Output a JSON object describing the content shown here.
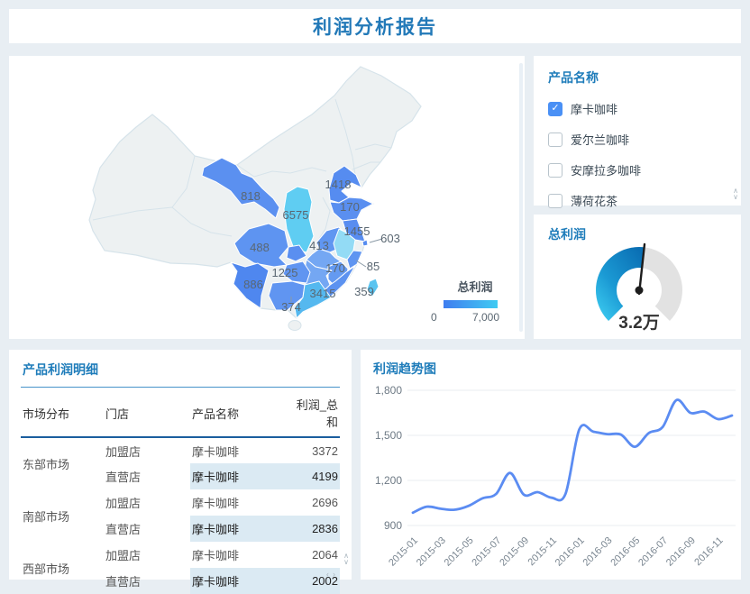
{
  "page": {
    "title": "利润分析报告",
    "accent_color": "#2279b8",
    "background": "#e8eef3"
  },
  "map_panel": {
    "legend_title": "总利润",
    "legend_min": "0",
    "legend_max": "7,000",
    "values": [
      "818",
      "6575",
      "1418",
      "170",
      "1455",
      "603",
      "413",
      "488",
      "1225",
      "170",
      "85",
      "886",
      "3415",
      "359",
      "374"
    ]
  },
  "filter_panel": {
    "title": "产品名称",
    "options": [
      {
        "label": "摩卡咖啡",
        "checked": true
      },
      {
        "label": "爱尔兰咖啡",
        "checked": false
      },
      {
        "label": "安摩拉多咖啡",
        "checked": false
      },
      {
        "label": "薄荷花茶",
        "checked": false
      }
    ]
  },
  "gauge_panel": {
    "title": "总利润",
    "value": "3.2万"
  },
  "table_panel": {
    "title": "产品利润明细",
    "columns": [
      "市场分布",
      "门店",
      "产品名称",
      "利润_总和"
    ],
    "groups": [
      {
        "market": "东部市场",
        "rows": [
          {
            "store": "加盟店",
            "product": "摩卡咖啡",
            "profit": "3372",
            "highlight": false
          },
          {
            "store": "直营店",
            "product": "摩卡咖啡",
            "profit": "4199",
            "highlight": true
          }
        ]
      },
      {
        "market": "南部市场",
        "rows": [
          {
            "store": "加盟店",
            "product": "摩卡咖啡",
            "profit": "2696",
            "highlight": false
          },
          {
            "store": "直营店",
            "product": "摩卡咖啡",
            "profit": "2836",
            "highlight": true
          }
        ]
      },
      {
        "market": "西部市场",
        "rows": [
          {
            "store": "加盟店",
            "product": "摩卡咖啡",
            "profit": "2064",
            "highlight": false
          },
          {
            "store": "直营店",
            "product": "摩卡咖啡",
            "profit": "2002",
            "highlight": true
          }
        ]
      }
    ]
  },
  "trend_panel": {
    "title": "利润趋势图",
    "ylim": [
      900,
      1800
    ],
    "yticks": [
      {
        "value": 900,
        "label": "900"
      },
      {
        "value": 1200,
        "label": "1,200"
      },
      {
        "value": 1500,
        "label": "1,500"
      },
      {
        "value": 1800,
        "label": "1,800"
      }
    ],
    "x_tick_labels": [
      "2015-01",
      "2015-03",
      "2015-05",
      "2015-07",
      "2015-09",
      "2015-11",
      "2016-01",
      "2016-03",
      "2016-05",
      "2016-07",
      "2016-09",
      "2016-11"
    ],
    "values": [
      985,
      1025,
      1012,
      1005,
      1030,
      1080,
      1110,
      1250,
      1105,
      1122,
      1085,
      1110,
      1541,
      1525,
      1508,
      1505,
      1424,
      1515,
      1555,
      1735,
      1650,
      1658,
      1608,
      1632
    ]
  },
  "chart_data": [
    {
      "type": "heatmap",
      "subtype": "choropleth-map",
      "title": "总利润",
      "legend_range": [
        0,
        7000
      ],
      "values": [
        818,
        6575,
        1418,
        170,
        1455,
        603,
        413,
        488,
        1225,
        170,
        85,
        886,
        3415,
        359,
        374
      ]
    },
    {
      "type": "pie",
      "subtype": "gauge",
      "title": "总利润",
      "value_label": "3.2万",
      "fill_ratio": 0.53
    },
    {
      "type": "line",
      "title": "利润趋势图",
      "x": [
        "2015-01",
        "2015-02",
        "2015-03",
        "2015-04",
        "2015-05",
        "2015-06",
        "2015-07",
        "2015-08",
        "2015-09",
        "2015-10",
        "2015-11",
        "2015-12",
        "2016-01",
        "2016-02",
        "2016-03",
        "2016-04",
        "2016-05",
        "2016-06",
        "2016-07",
        "2016-08",
        "2016-09",
        "2016-10",
        "2016-11",
        "2016-12"
      ],
      "values": [
        985,
        1025,
        1012,
        1005,
        1030,
        1080,
        1110,
        1250,
        1105,
        1122,
        1085,
        1110,
        1541,
        1525,
        1508,
        1505,
        1424,
        1515,
        1555,
        1735,
        1650,
        1658,
        1608,
        1632
      ],
      "ylim": [
        900,
        1800
      ],
      "yticks": [
        900,
        1200,
        1500,
        1800
      ],
      "grid": true,
      "legend": "none"
    }
  ]
}
